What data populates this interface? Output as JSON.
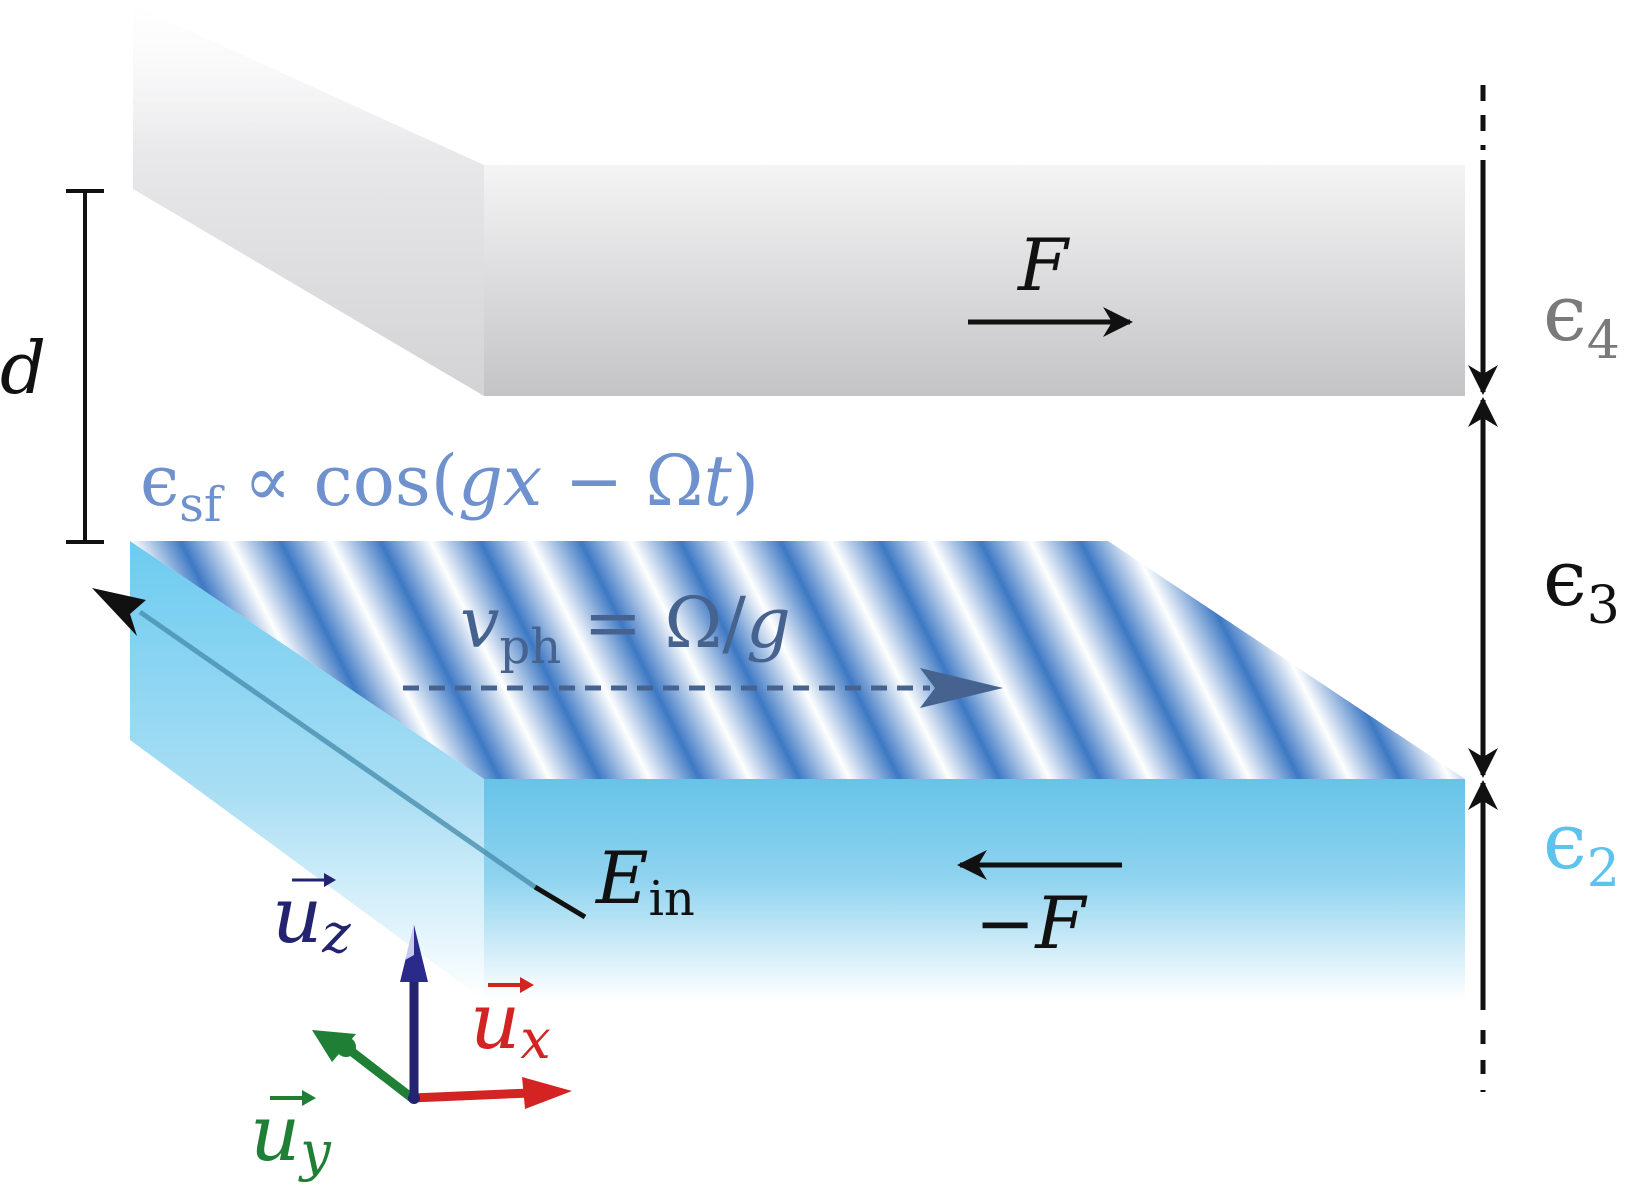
{
  "labels": {
    "d": "d",
    "F_top": "F",
    "F_bottom": "−F",
    "eps4": "ϵ",
    "eps4_sub": "4",
    "eps3": "ϵ",
    "eps3_sub": "3",
    "eps2": "ϵ",
    "eps2_sub": "2",
    "eps_sf": "ϵ",
    "eps_sf_sub": "sf",
    "eps_sf_rest": " ∝ cos(",
    "eps_sf_gx": "gx",
    "eps_sf_minus": " − Ω",
    "eps_sf_t": "t",
    "eps_sf_close": ")",
    "vph": "v",
    "vph_sub": "ph",
    "vph_rest": " = Ω/",
    "vph_g": "g",
    "E_in": "E",
    "E_in_sub": "in",
    "u_x": "u",
    "u_x_sub": "x",
    "u_y": "u",
    "u_y_sub": "y",
    "u_z": "u",
    "u_z_sub": "z"
  },
  "colors": {
    "upper_slab": "#c9c9cb",
    "lower_slab": "#66c4e9",
    "grating_blue": "#3d78c4",
    "eps_sf_text": "#6f92cf",
    "vph_text": "#46628f",
    "eps4_text": "#7a7a7a",
    "eps2_text": "#5cc3ec",
    "axis_x": "#d42323",
    "axis_y": "#1e7f35",
    "axis_z": "#23236f",
    "ink": "#111111"
  }
}
